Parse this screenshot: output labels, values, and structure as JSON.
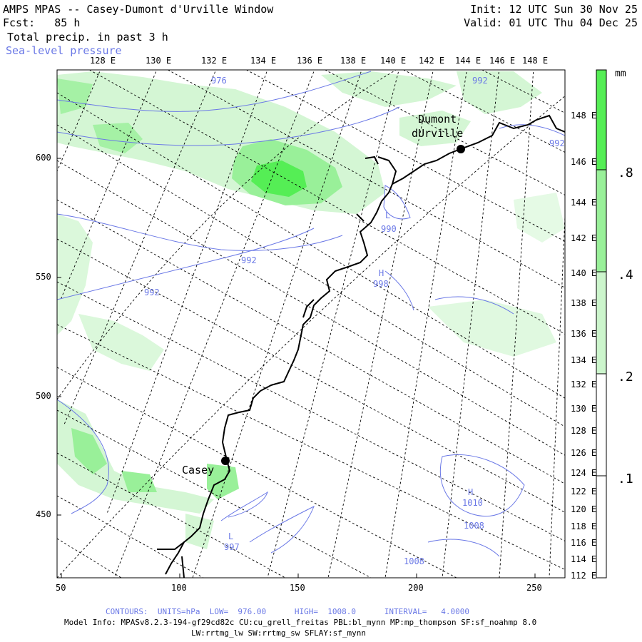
{
  "header": {
    "title": "AMPS MPAS -- Casey-Dumont d'Urville Window",
    "fcst": "Fcst:   85 h",
    "field": "Total precip. in past 3 h",
    "overlay": "Sea-level pressure",
    "init": "Init: 12 UTC Sun 30 Nov 25",
    "valid": "Valid: 01 UTC Thu 04 Dec 25"
  },
  "top_lon_labels": [
    "128 E",
    "130 E",
    "132 E",
    "134 E",
    "136 E",
    "138 E",
    "140 E",
    "142 E",
    "144 E",
    "146 E",
    "148 E"
  ],
  "right_lon_labels": [
    "148 E",
    "146 E",
    "144 E",
    "142 E",
    "140 E",
    "138 E",
    "136 E",
    "134 E",
    "132 E",
    "130 E",
    "128 E",
    "126 E",
    "124 E",
    "122 E",
    "120 E",
    "118 E",
    "116 E",
    "114 E",
    "112 E"
  ],
  "y_axis_labels": [
    "600",
    "550",
    "500",
    "450"
  ],
  "x_axis_labels": [
    "50",
    "100",
    "150",
    "200",
    "250"
  ],
  "colorbar": {
    "unit": "mm",
    "labels": [
      ".8",
      ".4",
      ".2",
      ".1"
    ],
    "colors": [
      "#55ee55",
      "#99f099",
      "#ccf5cc",
      "#ffffff"
    ]
  },
  "places": {
    "dumont_line1": "Dumont",
    "dumont_line2": "dUrville",
    "casey": "Casey"
  },
  "contour_labels": [
    "976",
    "992",
    "992",
    "992",
    "992",
    "L",
    "990",
    "H",
    "998",
    "H",
    "1010",
    "1008",
    "1008",
    "L",
    "997"
  ],
  "footer": {
    "contours": "CONTOURS:  UNITS=hPa  LOW=  976.00      HIGH=  1008.0      INTERVAL=   4.0000",
    "model_info": "Model Info: MPASv8.2.3-194-gf29cd82c CU:cu_grell_freitas PBL:bl_mynn MP:mp_thompson SF:sf_noahmp 8.0",
    "physics": "LW:rrtmg_lw SW:rrtmg_sw SFLAY:sf_mynn"
  },
  "colors": {
    "precip_light": "#ccf5cc",
    "precip_mid": "#99f099",
    "precip_heavy": "#55ee55",
    "slp_contour": "#6a78e6",
    "coastline": "#000000"
  }
}
